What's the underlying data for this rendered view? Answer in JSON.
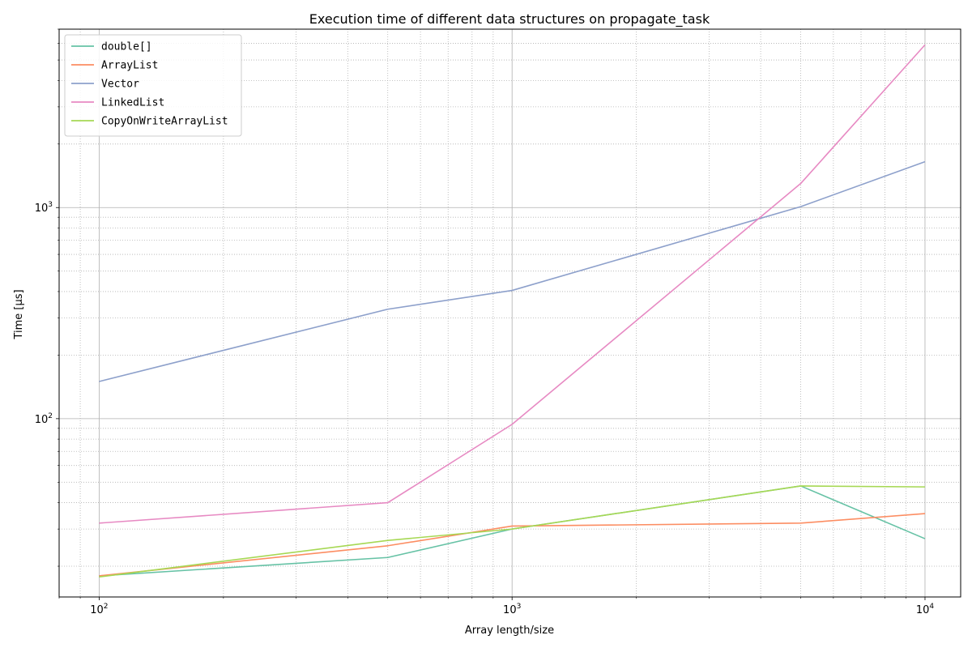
{
  "chart_data": {
    "type": "line",
    "title": "Execution time of different data structures on propagate_task",
    "xlabel": "Array length/size",
    "ylabel": "Time [μs]",
    "xscale": "log",
    "yscale": "log",
    "xlim": [
      80,
      12200
    ],
    "ylim": [
      14.3,
      7000
    ],
    "grid": true,
    "legend_position": "upper left",
    "xticks": [
      {
        "value": 100,
        "base": "10",
        "exp": "2"
      },
      {
        "value": 1000,
        "base": "10",
        "exp": "3"
      },
      {
        "value": 10000,
        "base": "10",
        "exp": "4"
      }
    ],
    "yticks": [
      {
        "value": 100,
        "base": "10",
        "exp": "2"
      },
      {
        "value": 1000,
        "base": "10",
        "exp": "3"
      }
    ],
    "x": [
      100,
      500,
      1000,
      5000,
      10000
    ],
    "series": [
      {
        "name": "double[]",
        "color": "#66c2a5",
        "values": [
          18.0,
          22.0,
          30.0,
          48.0,
          27.0
        ]
      },
      {
        "name": "ArrayList",
        "color": "#fc8d62",
        "values": [
          18.0,
          25.0,
          31.0,
          32.0,
          35.5
        ]
      },
      {
        "name": "Vector",
        "color": "#8da0cb",
        "values": [
          150,
          330,
          405,
          1010,
          1650
        ]
      },
      {
        "name": "LinkedList",
        "color": "#e78ac3",
        "values": [
          32.0,
          40.0,
          94.0,
          1300,
          5900
        ]
      },
      {
        "name": "CopyOnWriteArrayList",
        "color": "#a6d854",
        "values": [
          17.8,
          26.5,
          30.0,
          48.0,
          47.5
        ]
      }
    ]
  }
}
